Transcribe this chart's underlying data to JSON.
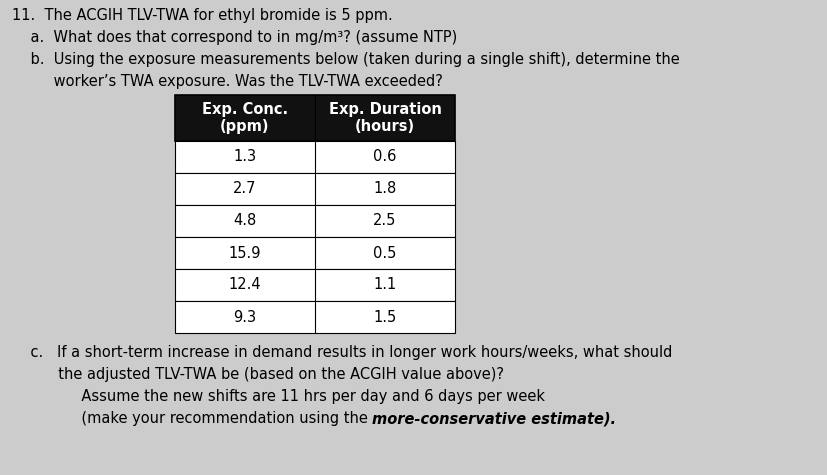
{
  "background_color": "#cccccc",
  "title_line": "11.  The ACGIH TLV-TWA for ethyl bromide is 5 ppm.",
  "line_a": "    a.  What does that correspond to in mg/m³? (assume NTP)",
  "line_b1": "    b.  Using the exposure measurements below (taken during a single shift), determine the",
  "line_b2": "         worker’s TWA exposure. Was the TLV-TWA exceeded?",
  "table_headers": [
    "Exp. Conc.\n(ppm)",
    "Exp. Duration\n(hours)"
  ],
  "table_data": [
    [
      "1.3",
      "0.6"
    ],
    [
      "2.7",
      "1.8"
    ],
    [
      "4.8",
      "2.5"
    ],
    [
      "15.9",
      "0.5"
    ],
    [
      "12.4",
      "1.1"
    ],
    [
      "9.3",
      "1.5"
    ]
  ],
  "table_header_bg": "#111111",
  "table_header_color": "#ffffff",
  "table_row_bg": "#ffffff",
  "table_border_color": "#000000",
  "line_c1": "    c.   If a short-term increase in demand results in longer work hours/weeks, what should",
  "line_c2": "          the adjusted TLV-TWA be (based on the ACGIH value above)?",
  "line_c3": "               Assume the new shifts are 11 hrs per day and 6 days per week",
  "line_c4_pre": "               (make your recommendation using the ",
  "line_c4_bold": "more-conservative estimate",
  "line_c4_post": ").",
  "font_size_main": 10.5,
  "font_size_table_header": 10.5,
  "font_size_table_data": 10.5
}
